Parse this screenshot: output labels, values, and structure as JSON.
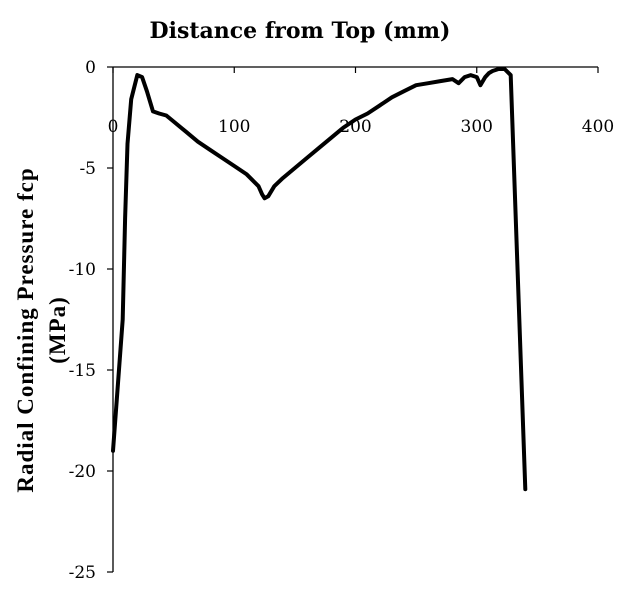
{
  "chart_data": {
    "type": "line",
    "xlabel": "Distance from Top (mm)",
    "ylabel_lines": [
      "Radial Confining Pressure fcp",
      "(MPa)"
    ],
    "xlim": [
      0,
      400
    ],
    "ylim": [
      -25,
      0
    ],
    "x_ticks": [
      0,
      100,
      200,
      300,
      400
    ],
    "y_ticks": [
      0,
      -5,
      -10,
      -15,
      -20,
      -25
    ],
    "x_tick_labels": [
      "0",
      "100",
      "200",
      "300",
      "400"
    ],
    "y_tick_labels": [
      "0",
      "-5",
      "-10",
      "-15",
      "-20",
      "-25"
    ],
    "grid": false,
    "line_color": "#000000",
    "series": [
      {
        "x": [
          0,
          8,
          10,
          12,
          15,
          20,
          24,
          28,
          33,
          38,
          44,
          50,
          60,
          70,
          80,
          90,
          100,
          110,
          115,
          120,
          123,
          125,
          128,
          133,
          140,
          150,
          160,
          170,
          180,
          190,
          200,
          210,
          220,
          230,
          240,
          250,
          260,
          270,
          280,
          285,
          290,
          295,
          300,
          303,
          307,
          310,
          313,
          318,
          323,
          328,
          340
        ],
        "y": [
          -19.0,
          -12.5,
          -7.5,
          -3.8,
          -1.6,
          -0.4,
          -0.5,
          -1.2,
          -2.2,
          -2.3,
          -2.4,
          -2.7,
          -3.2,
          -3.7,
          -4.1,
          -4.5,
          -4.9,
          -5.3,
          -5.6,
          -5.9,
          -6.3,
          -6.5,
          -6.4,
          -5.9,
          -5.5,
          -5.0,
          -4.5,
          -4.0,
          -3.5,
          -3.0,
          -2.6,
          -2.3,
          -1.9,
          -1.5,
          -1.2,
          -0.9,
          -0.8,
          -0.7,
          -0.6,
          -0.8,
          -0.5,
          -0.4,
          -0.5,
          -0.9,
          -0.5,
          -0.3,
          -0.2,
          -0.1,
          -0.1,
          -0.4,
          -20.9
        ]
      }
    ]
  }
}
